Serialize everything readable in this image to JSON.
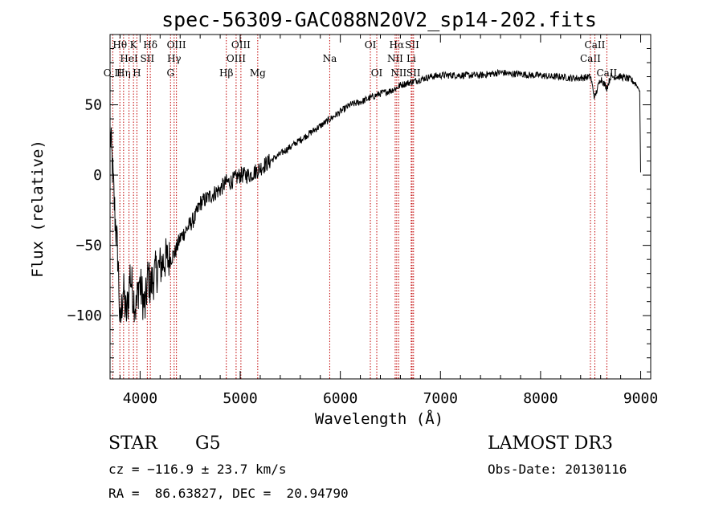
{
  "chart_data": {
    "type": "line",
    "title": "spec-56309-GAC088N20V2_sp14-202.fits",
    "xlabel": "Wavelength (Å)",
    "ylabel": "Flux (relative)",
    "xlim": [
      3700,
      9100
    ],
    "ylim": [
      -145,
      100
    ],
    "xticks": [
      4000,
      5000,
      6000,
      7000,
      8000,
      9000
    ],
    "xtick_labels": [
      "4000",
      "5000",
      "6000",
      "7000",
      "8000",
      "9000"
    ],
    "yticks": [
      -100,
      -50,
      0,
      50
    ],
    "ytick_labels": [
      "−100",
      "−50",
      "0",
      "50"
    ],
    "spectrum": {
      "x": [
        3700,
        3720,
        3750,
        3780,
        3800,
        3830,
        3860,
        3880,
        3900,
        3930,
        3960,
        3990,
        4020,
        4050,
        4080,
        4100,
        4150,
        4200,
        4250,
        4300,
        4350,
        4400,
        4450,
        4500,
        4550,
        4600,
        4700,
        4800,
        4860,
        4900,
        5000,
        5100,
        5200,
        5300,
        5400,
        5500,
        5600,
        5700,
        5800,
        5900,
        6000,
        6100,
        6200,
        6300,
        6400,
        6500,
        6563,
        6600,
        6700,
        6800,
        6900,
        7000,
        7100,
        7200,
        7300,
        7400,
        7500,
        7600,
        7700,
        7800,
        7900,
        8000,
        8100,
        8200,
        8300,
        8400,
        8500,
        8540,
        8600,
        8662,
        8700,
        8800,
        8900,
        8950,
        8990,
        9000
      ],
      "y": [
        30,
        10,
        -30,
        -60,
        -110,
        -80,
        -100,
        -90,
        -70,
        -85,
        -95,
        -75,
        -85,
        -95,
        -70,
        -80,
        -70,
        -65,
        -60,
        -60,
        -55,
        -45,
        -40,
        -35,
        -30,
        -20,
        -15,
        -10,
        -5,
        -5,
        0,
        0,
        5,
        10,
        15,
        20,
        25,
        30,
        35,
        40,
        45,
        50,
        52,
        55,
        58,
        60,
        62,
        64,
        66,
        68,
        70,
        71,
        71,
        71,
        71,
        71,
        72,
        73,
        72,
        72,
        71,
        71,
        70,
        70,
        69,
        69,
        70,
        55,
        69,
        62,
        70,
        70,
        68,
        65,
        60,
        2
      ]
    },
    "line_markers": [
      {
        "label": "O II",
        "x": 3727,
        "row": 3
      },
      {
        "label": "Hθ",
        "x": 3798,
        "row": 1
      },
      {
        "label": "Hη",
        "x": 3835,
        "row": 3
      },
      {
        "label": "HeI",
        "x": 3889,
        "row": 2
      },
      {
        "label": "K",
        "x": 3934,
        "row": 1
      },
      {
        "label": "H",
        "x": 3968,
        "row": 3
      },
      {
        "label": "SII",
        "x": 4072,
        "row": 2
      },
      {
        "label": "Hδ",
        "x": 4102,
        "row": 1
      },
      {
        "label": "G",
        "x": 4304,
        "row": 3
      },
      {
        "label": "Hγ",
        "x": 4340,
        "row": 2
      },
      {
        "label": "OIII",
        "x": 4363,
        "row": 1
      },
      {
        "label": "Hβ",
        "x": 4861,
        "row": 3
      },
      {
        "label": "OIII",
        "x": 4959,
        "row": 2
      },
      {
        "label": "OIII",
        "x": 5007,
        "row": 1
      },
      {
        "label": "Mg",
        "x": 5175,
        "row": 3
      },
      {
        "label": "Na",
        "x": 5894,
        "row": 2
      },
      {
        "label": "OI",
        "x": 6300,
        "row": 1
      },
      {
        "label": "OI",
        "x": 6364,
        "row": 3
      },
      {
        "label": "NII",
        "x": 6548,
        "row": 2
      },
      {
        "label": "Hα",
        "x": 6563,
        "row": 1
      },
      {
        "label": "NII",
        "x": 6583,
        "row": 3
      },
      {
        "label": "Li",
        "x": 6708,
        "row": 2
      },
      {
        "label": "SII",
        "x": 6717,
        "row": 1
      },
      {
        "label": "SII",
        "x": 6731,
        "row": 3
      },
      {
        "label": "CaII",
        "x": 8498,
        "row": 2
      },
      {
        "label": "CaII",
        "x": 8542,
        "row": 1
      },
      {
        "label": "CaII",
        "x": 8662,
        "row": 3
      }
    ]
  },
  "info": {
    "object_type": "STAR",
    "subclass": "G5",
    "redshift": "cz = −116.9 ± 23.7 km/s",
    "coords": "RA =  86.63827, DEC =  20.94790",
    "survey": "LAMOST DR3",
    "obs_date": "Obs-Date: 20130116"
  }
}
